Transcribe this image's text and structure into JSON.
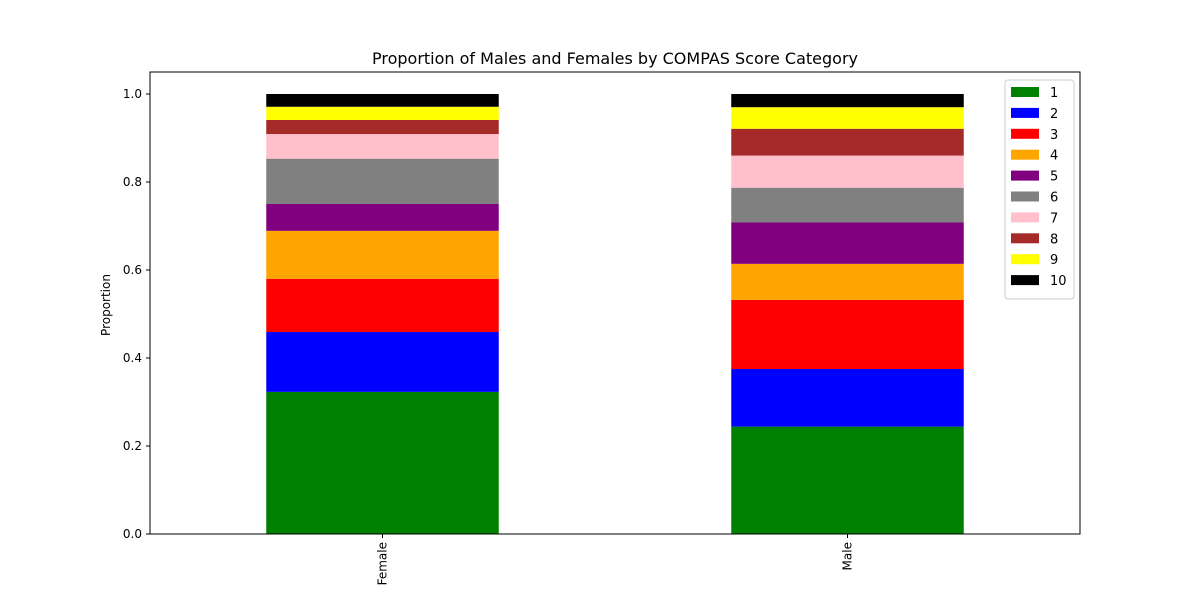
{
  "chart_data": {
    "type": "bar",
    "stacked": true,
    "title": "Proportion of Males and Females by COMPAS Score Category",
    "xlabel": "",
    "ylabel": "Proportion",
    "categories": [
      "Female",
      "Male"
    ],
    "ylim": [
      0,
      1.05
    ],
    "yticks": [
      "0.0",
      "0.2",
      "0.4",
      "0.6",
      "0.8",
      "1.0"
    ],
    "grid": false,
    "legend_position": "top-right",
    "series": [
      {
        "name": "1",
        "color": "#008000",
        "values": [
          0.323,
          0.244
        ]
      },
      {
        "name": "2",
        "color": "#0000ff",
        "values": [
          0.136,
          0.131
        ]
      },
      {
        "name": "3",
        "color": "#ff0000",
        "values": [
          0.121,
          0.157
        ]
      },
      {
        "name": "4",
        "color": "#ffa500",
        "values": [
          0.109,
          0.082
        ]
      },
      {
        "name": "5",
        "color": "#800080",
        "values": [
          0.061,
          0.094
        ]
      },
      {
        "name": "6",
        "color": "#808080",
        "values": [
          0.103,
          0.079
        ]
      },
      {
        "name": "7",
        "color": "#ffc0cb",
        "values": [
          0.056,
          0.073
        ]
      },
      {
        "name": "8",
        "color": "#a52a2a",
        "values": [
          0.032,
          0.061
        ]
      },
      {
        "name": "9",
        "color": "#ffff00",
        "values": [
          0.03,
          0.049
        ]
      },
      {
        "name": "10",
        "color": "#000000",
        "values": [
          0.029,
          0.03
        ]
      }
    ]
  }
}
